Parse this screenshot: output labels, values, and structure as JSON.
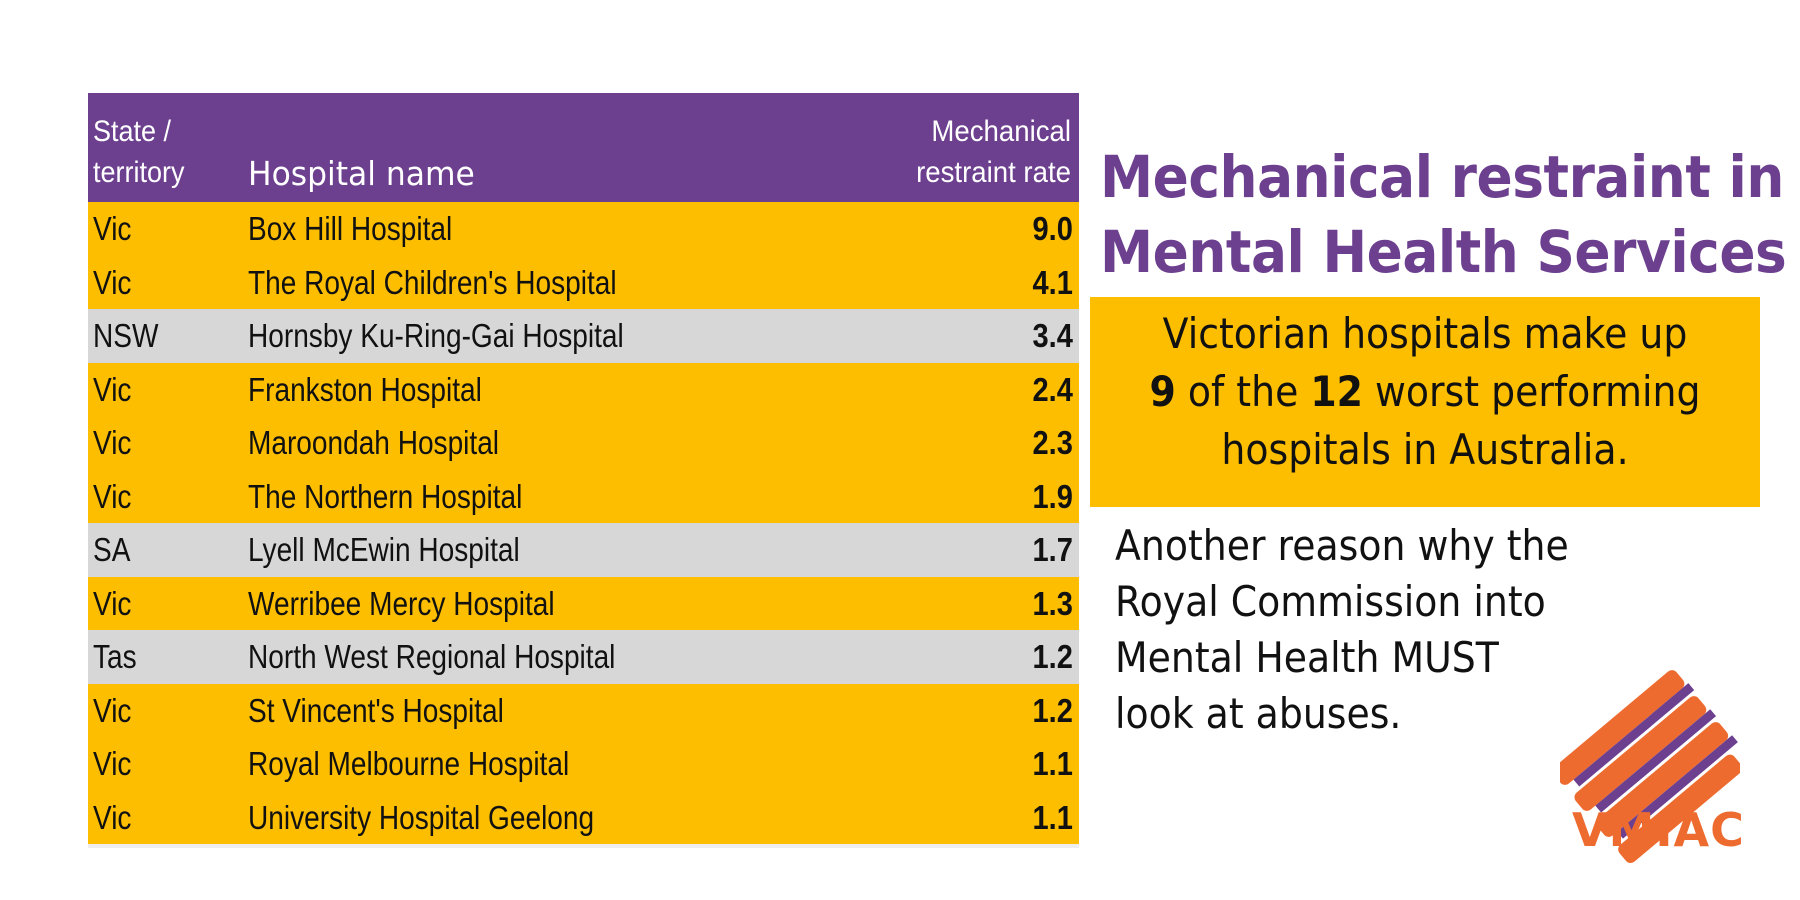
{
  "table": {
    "headers": {
      "state": [
        "State /",
        "territory"
      ],
      "name": "Hospital name",
      "rate": [
        "Mechanical",
        "restraint rate"
      ]
    },
    "rows": [
      {
        "state": "Vic",
        "name": "Box Hill Hospital",
        "rate": "9.0",
        "highlight": true
      },
      {
        "state": "Vic",
        "name": "The Royal Children's Hospital",
        "rate": "4.1",
        "highlight": true
      },
      {
        "state": "NSW",
        "name": "Hornsby Ku-Ring-Gai Hospital",
        "rate": "3.4",
        "highlight": false
      },
      {
        "state": "Vic",
        "name": "Frankston Hospital",
        "rate": "2.4",
        "highlight": true
      },
      {
        "state": "Vic",
        "name": "Maroondah Hospital",
        "rate": "2.3",
        "highlight": true
      },
      {
        "state": "Vic",
        "name": "The Northern Hospital",
        "rate": "1.9",
        "highlight": true
      },
      {
        "state": "SA",
        "name": "Lyell McEwin Hospital",
        "rate": "1.7",
        "highlight": false
      },
      {
        "state": "Vic",
        "name": "Werribee Mercy Hospital",
        "rate": "1.3",
        "highlight": true
      },
      {
        "state": "Tas",
        "name": "North West Regional Hospital",
        "rate": "1.2",
        "highlight": false
      },
      {
        "state": "Vic",
        "name": "St Vincent's Hospital",
        "rate": "1.2",
        "highlight": true
      },
      {
        "state": "Vic",
        "name": "Royal Melbourne Hospital",
        "rate": "1.1",
        "highlight": true
      },
      {
        "state": "Vic",
        "name": "University Hospital Geelong",
        "rate": "1.1",
        "highlight": true
      }
    ]
  },
  "title": [
    "Mechanical restraint in",
    "Mental Health Services"
  ],
  "callout": {
    "line1": "Victorian hospitals make up",
    "num1": "9",
    "mid": " of the ",
    "num2": "12",
    "tail": " worst performing",
    "line3": "hospitals in Australia."
  },
  "reason": [
    "Another reason why the",
    "Royal Commission into",
    "Mental Health MUST",
    "look at abuses."
  ],
  "logo": {
    "text": "VMIAC",
    "icon": "vmiac-stripes-icon"
  },
  "colors": {
    "purple": "#6c3f8f",
    "yellow": "#fdbe00",
    "grey": "#d7d7d7",
    "orange": "#ee6b2f"
  }
}
